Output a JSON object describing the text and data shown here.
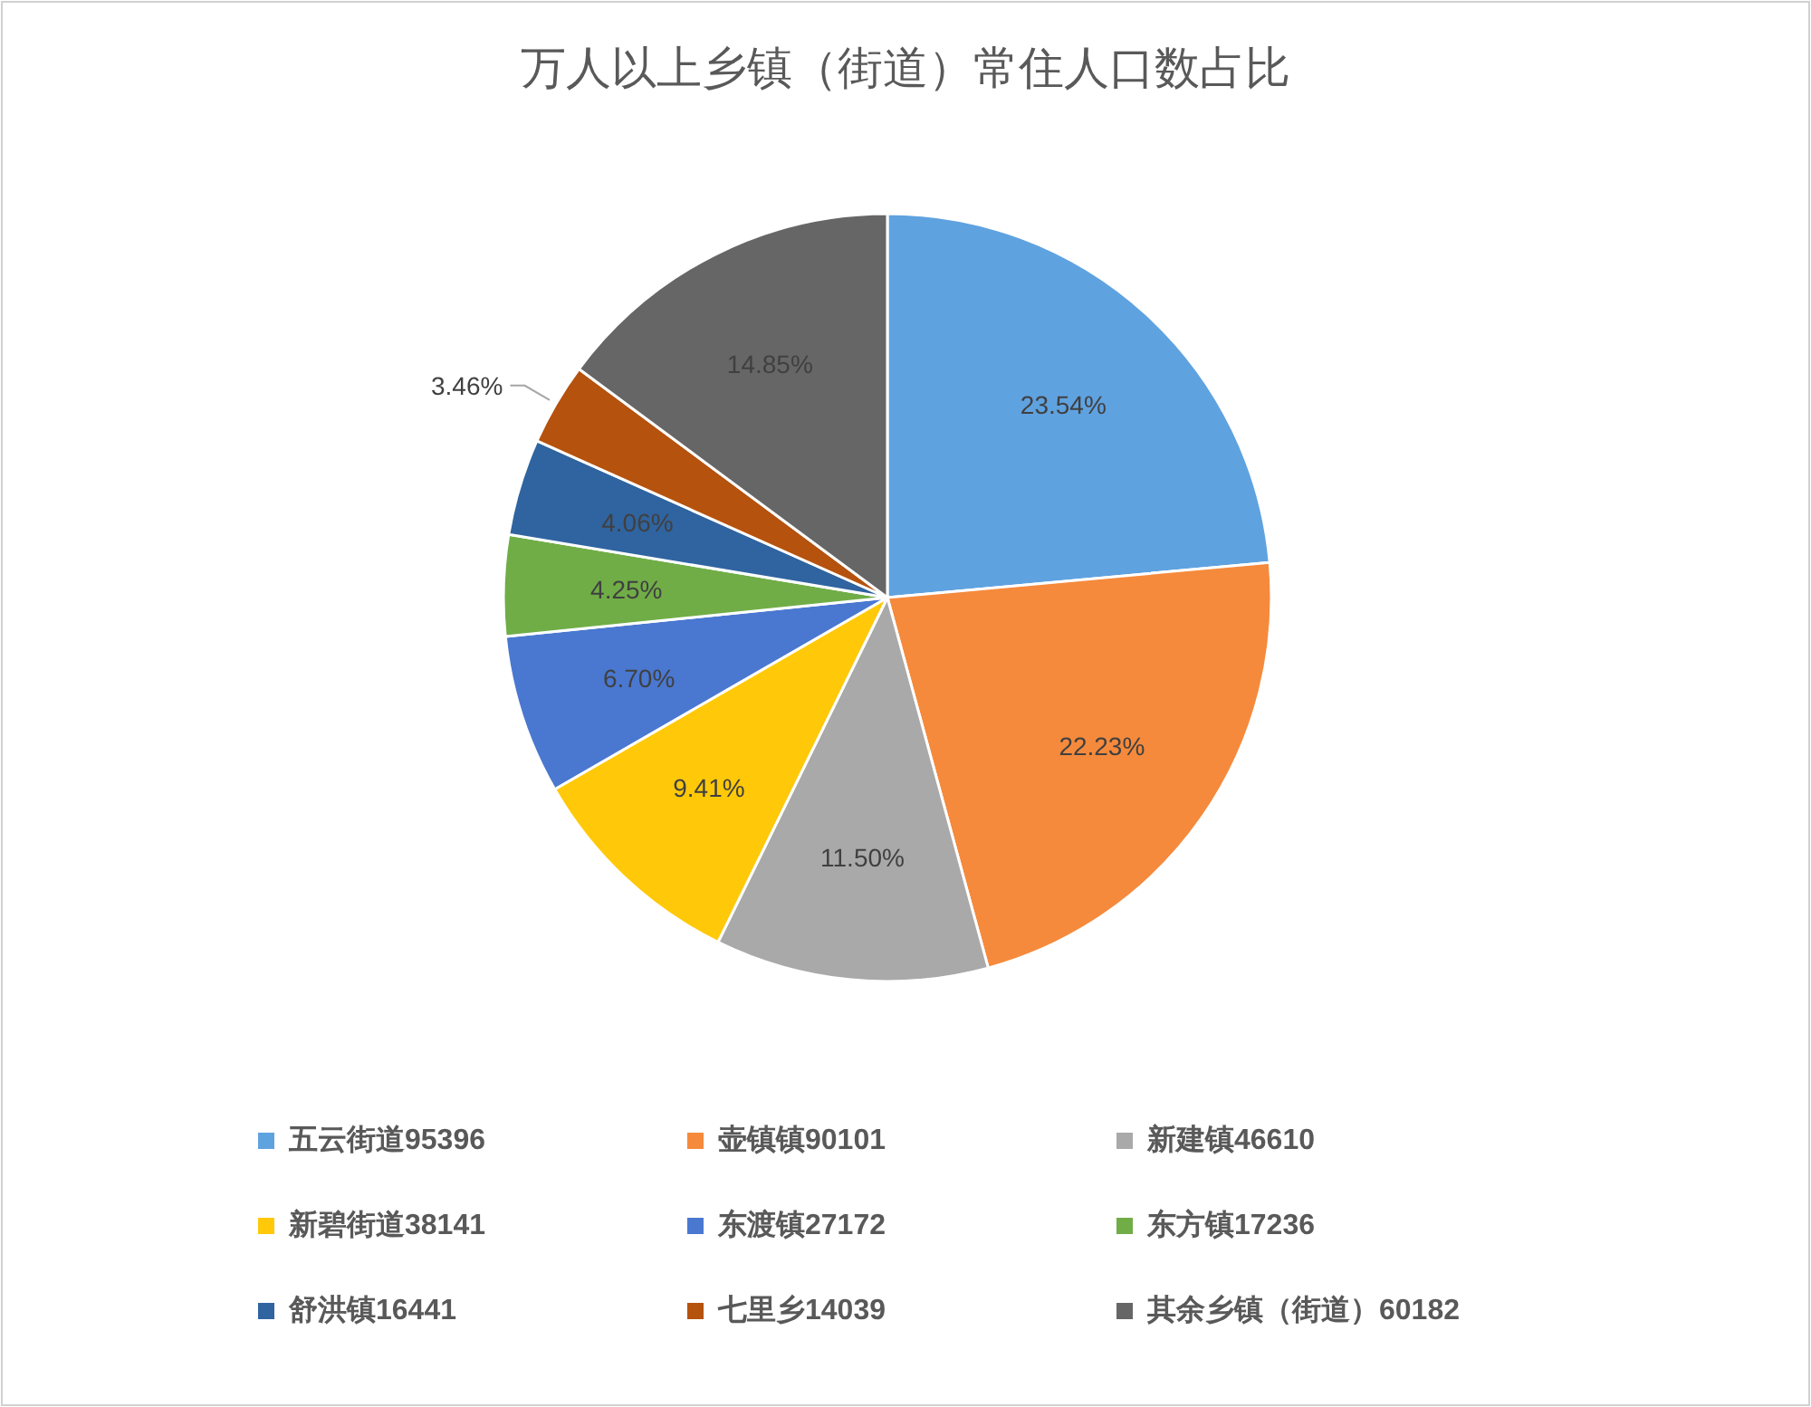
{
  "chart_data": {
    "type": "pie",
    "title": "万人以上乡镇（街道）常住人口数占比",
    "categories": [
      "五云街道95396",
      "壶镇镇90101",
      "新建镇46610",
      "新碧街道38141",
      "东渡镇27172",
      "东方镇17236",
      "舒洪镇16441",
      "七里乡14039",
      "其余乡镇（街道）60182"
    ],
    "values": [
      23.54,
      22.23,
      11.5,
      9.41,
      6.7,
      4.25,
      4.06,
      3.46,
      14.85
    ],
    "value_labels": [
      "23.54%",
      "22.23%",
      "11.50%",
      "9.41%",
      "6.70%",
      "4.25%",
      "4.06%",
      "3.46%",
      "14.85%"
    ],
    "colors": [
      "#5fa2e0",
      "#f58a3c",
      "#a9a9a9",
      "#ffc90a",
      "#4a78d0",
      "#70ad47",
      "#2f64a0",
      "#b5520e",
      "#666666"
    ],
    "legend": "bottom"
  }
}
